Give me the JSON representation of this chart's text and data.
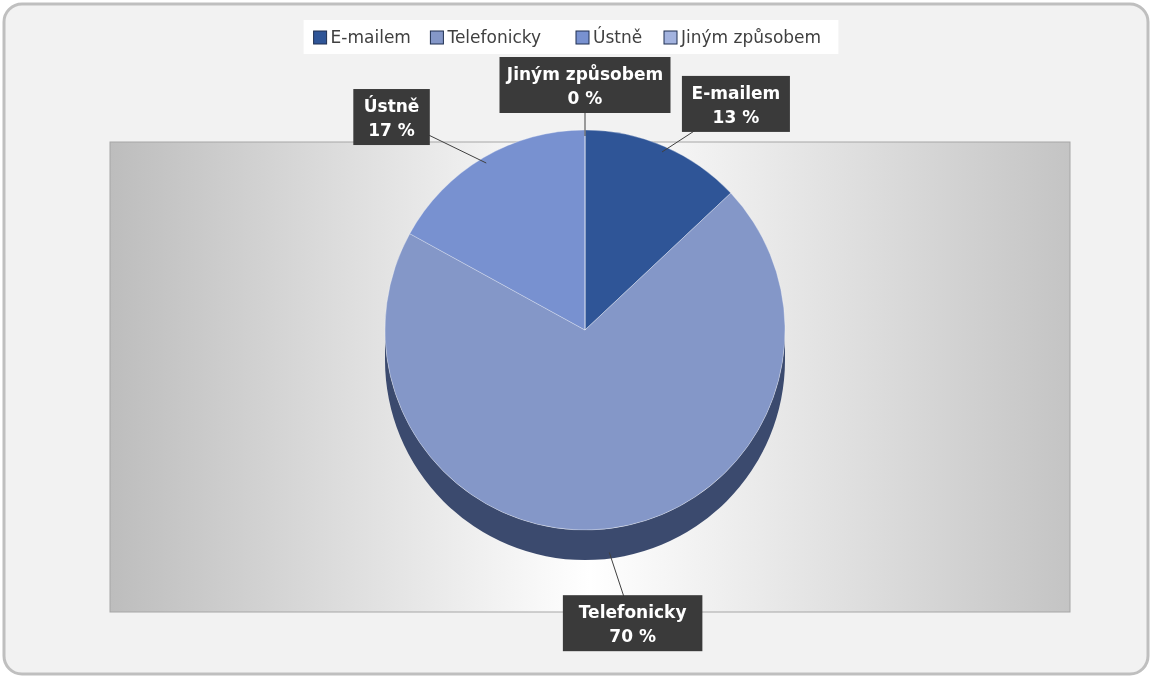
{
  "chart_data": {
    "type": "pie",
    "categories": [
      "E-mailem",
      "Telefonicky",
      "Ústně",
      "Jiným způsobem"
    ],
    "values": [
      13,
      70,
      17,
      0
    ],
    "colors": [
      "#2f5597",
      "#8497c8",
      "#7891d0",
      "#a3b3df"
    ],
    "value_labels": [
      "13 %",
      "70 %",
      "17 %",
      "0 %"
    ],
    "legend": "top"
  }
}
